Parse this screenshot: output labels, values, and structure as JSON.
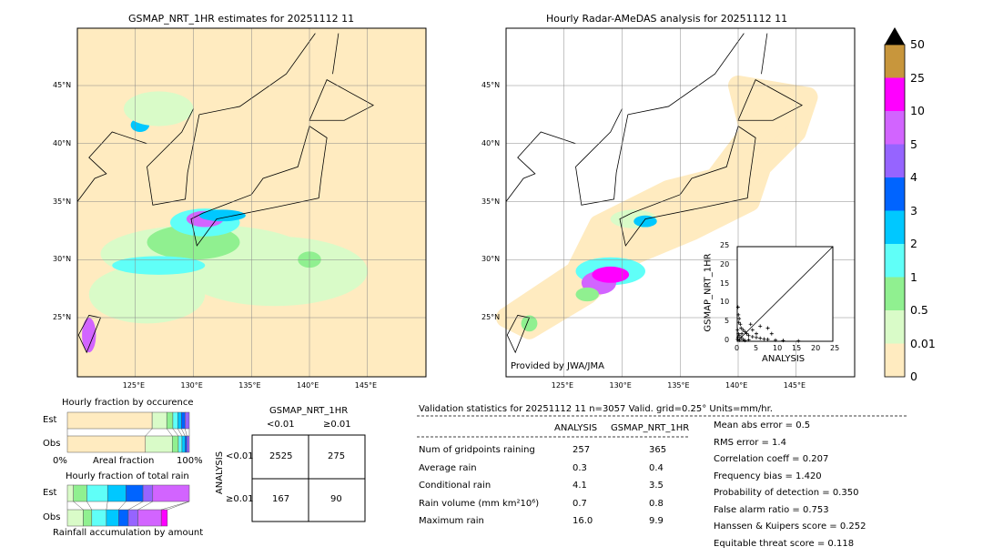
{
  "left_map": {
    "title": "GSMAP_NRT_1HR estimates for 20251112 11"
  },
  "right_map": {
    "title": "Hourly Radar-AMeDAS analysis for 20251112 11",
    "credit": "Provided by JWA/JMA"
  },
  "lon_ticks": [
    "125°E",
    "130°E",
    "135°E",
    "140°E",
    "145°E"
  ],
  "lat_ticks": [
    "45°N",
    "40°N",
    "35°N",
    "30°N",
    "25°N"
  ],
  "colorbar": {
    "labels": [
      "0",
      "0.01",
      "0.5",
      "1",
      "2",
      "3",
      "4",
      "5",
      "10",
      "25",
      "50"
    ],
    "colors": [
      "#ffebc0",
      "#d9fbc8",
      "#90f090",
      "#60fff8",
      "#00c8ff",
      "#0064ff",
      "#9664ff",
      "#d264ff",
      "#ff00ff",
      "#c8963c"
    ],
    "extend_color": "#000000"
  },
  "chart_data": [
    {
      "type": "scatter",
      "xlabel": "ANALYSIS",
      "ylabel": "GSMAP_NRT_1HR",
      "xlim": [
        0,
        25
      ],
      "ylim": [
        0,
        25
      ],
      "ticks": [
        "0",
        "5",
        "10",
        "15",
        "20",
        "25"
      ],
      "points": [
        [
          0.2,
          9
        ],
        [
          0.3,
          7
        ],
        [
          0.5,
          6
        ],
        [
          0.4,
          5
        ],
        [
          0.8,
          4.5
        ],
        [
          1,
          3.5
        ],
        [
          1.5,
          3
        ],
        [
          2,
          2.5
        ],
        [
          2.5,
          2
        ],
        [
          3,
          1.5
        ],
        [
          4,
          1.2
        ],
        [
          5,
          1
        ],
        [
          6,
          0.8
        ],
        [
          7,
          0.6
        ],
        [
          8,
          0.5
        ],
        [
          10,
          0.3
        ],
        [
          12,
          0.2
        ],
        [
          16,
          0.1
        ],
        [
          0.1,
          0.5
        ],
        [
          0.2,
          1
        ],
        [
          0.3,
          2
        ],
        [
          0.5,
          1.5
        ],
        [
          1,
          1
        ],
        [
          1.5,
          0.5
        ],
        [
          2,
          0.2
        ],
        [
          3,
          0.4
        ],
        [
          4,
          3
        ],
        [
          6,
          4
        ],
        [
          8,
          3.5
        ],
        [
          9,
          2
        ],
        [
          3.5,
          4.5
        ],
        [
          5,
          2
        ],
        [
          0.1,
          3
        ],
        [
          0.6,
          0.3
        ],
        [
          1.2,
          2
        ]
      ]
    },
    {
      "type": "bar",
      "title": "Hourly fraction by occurence",
      "xlabel": "Areal fraction",
      "x_ticks": [
        "0%",
        "100%"
      ],
      "rows": [
        {
          "label": "Est",
          "values": [
            69.5,
            12,
            5,
            4,
            3,
            3,
            3.5
          ]
        },
        {
          "label": "Obs",
          "values": [
            64,
            22,
            5,
            3,
            2.5,
            1.5,
            2
          ]
        }
      ]
    },
    {
      "type": "bar",
      "title": "Hourly fraction of total rain",
      "xlabel": "Rainfall accumulation by amount",
      "rows": [
        {
          "label": "Est",
          "values": [
            5,
            11,
            17,
            15,
            14,
            8,
            30,
            0
          ]
        },
        {
          "label": "Obs",
          "values": [
            13,
            7,
            12,
            10,
            8,
            8,
            19,
            5
          ]
        }
      ]
    },
    {
      "type": "table",
      "title": "GSMAP_NRT_1HR",
      "col_headers": [
        "<0.01",
        "≥0.01"
      ],
      "row_label": "ANALYSIS",
      "row_headers": [
        "<0.01",
        "≥0.01"
      ],
      "cells": [
        [
          "2525",
          "275"
        ],
        [
          "167",
          "90"
        ]
      ]
    }
  ],
  "stats": {
    "header": "Validation statistics for 20251112 11  n=3057 Valid. grid=0.25° Units=mm/hr.",
    "col_headers": [
      "ANALYSIS",
      "GSMAP_NRT_1HR"
    ],
    "rows": [
      {
        "label": "Num of gridpoints raining",
        "a": "257",
        "g": "365"
      },
      {
        "label": "Average rain",
        "a": "0.3",
        "g": "0.4"
      },
      {
        "label": "Conditional rain",
        "a": "4.1",
        "g": "3.5"
      },
      {
        "label": "Rain volume (mm km²10⁶)",
        "a": "0.7",
        "g": "0.8"
      },
      {
        "label": "Maximum rain",
        "a": "16.0",
        "g": "9.9"
      }
    ],
    "scores": [
      "Mean abs error =    0.5",
      "RMS error =    1.4",
      "Correlation coeff =  0.207",
      "Frequency bias =  1.420",
      "Probability of detection =  0.350",
      "False alarm ratio =  0.753",
      "Hanssen & Kuipers score =  0.252",
      "Equitable threat score =  0.118"
    ]
  }
}
